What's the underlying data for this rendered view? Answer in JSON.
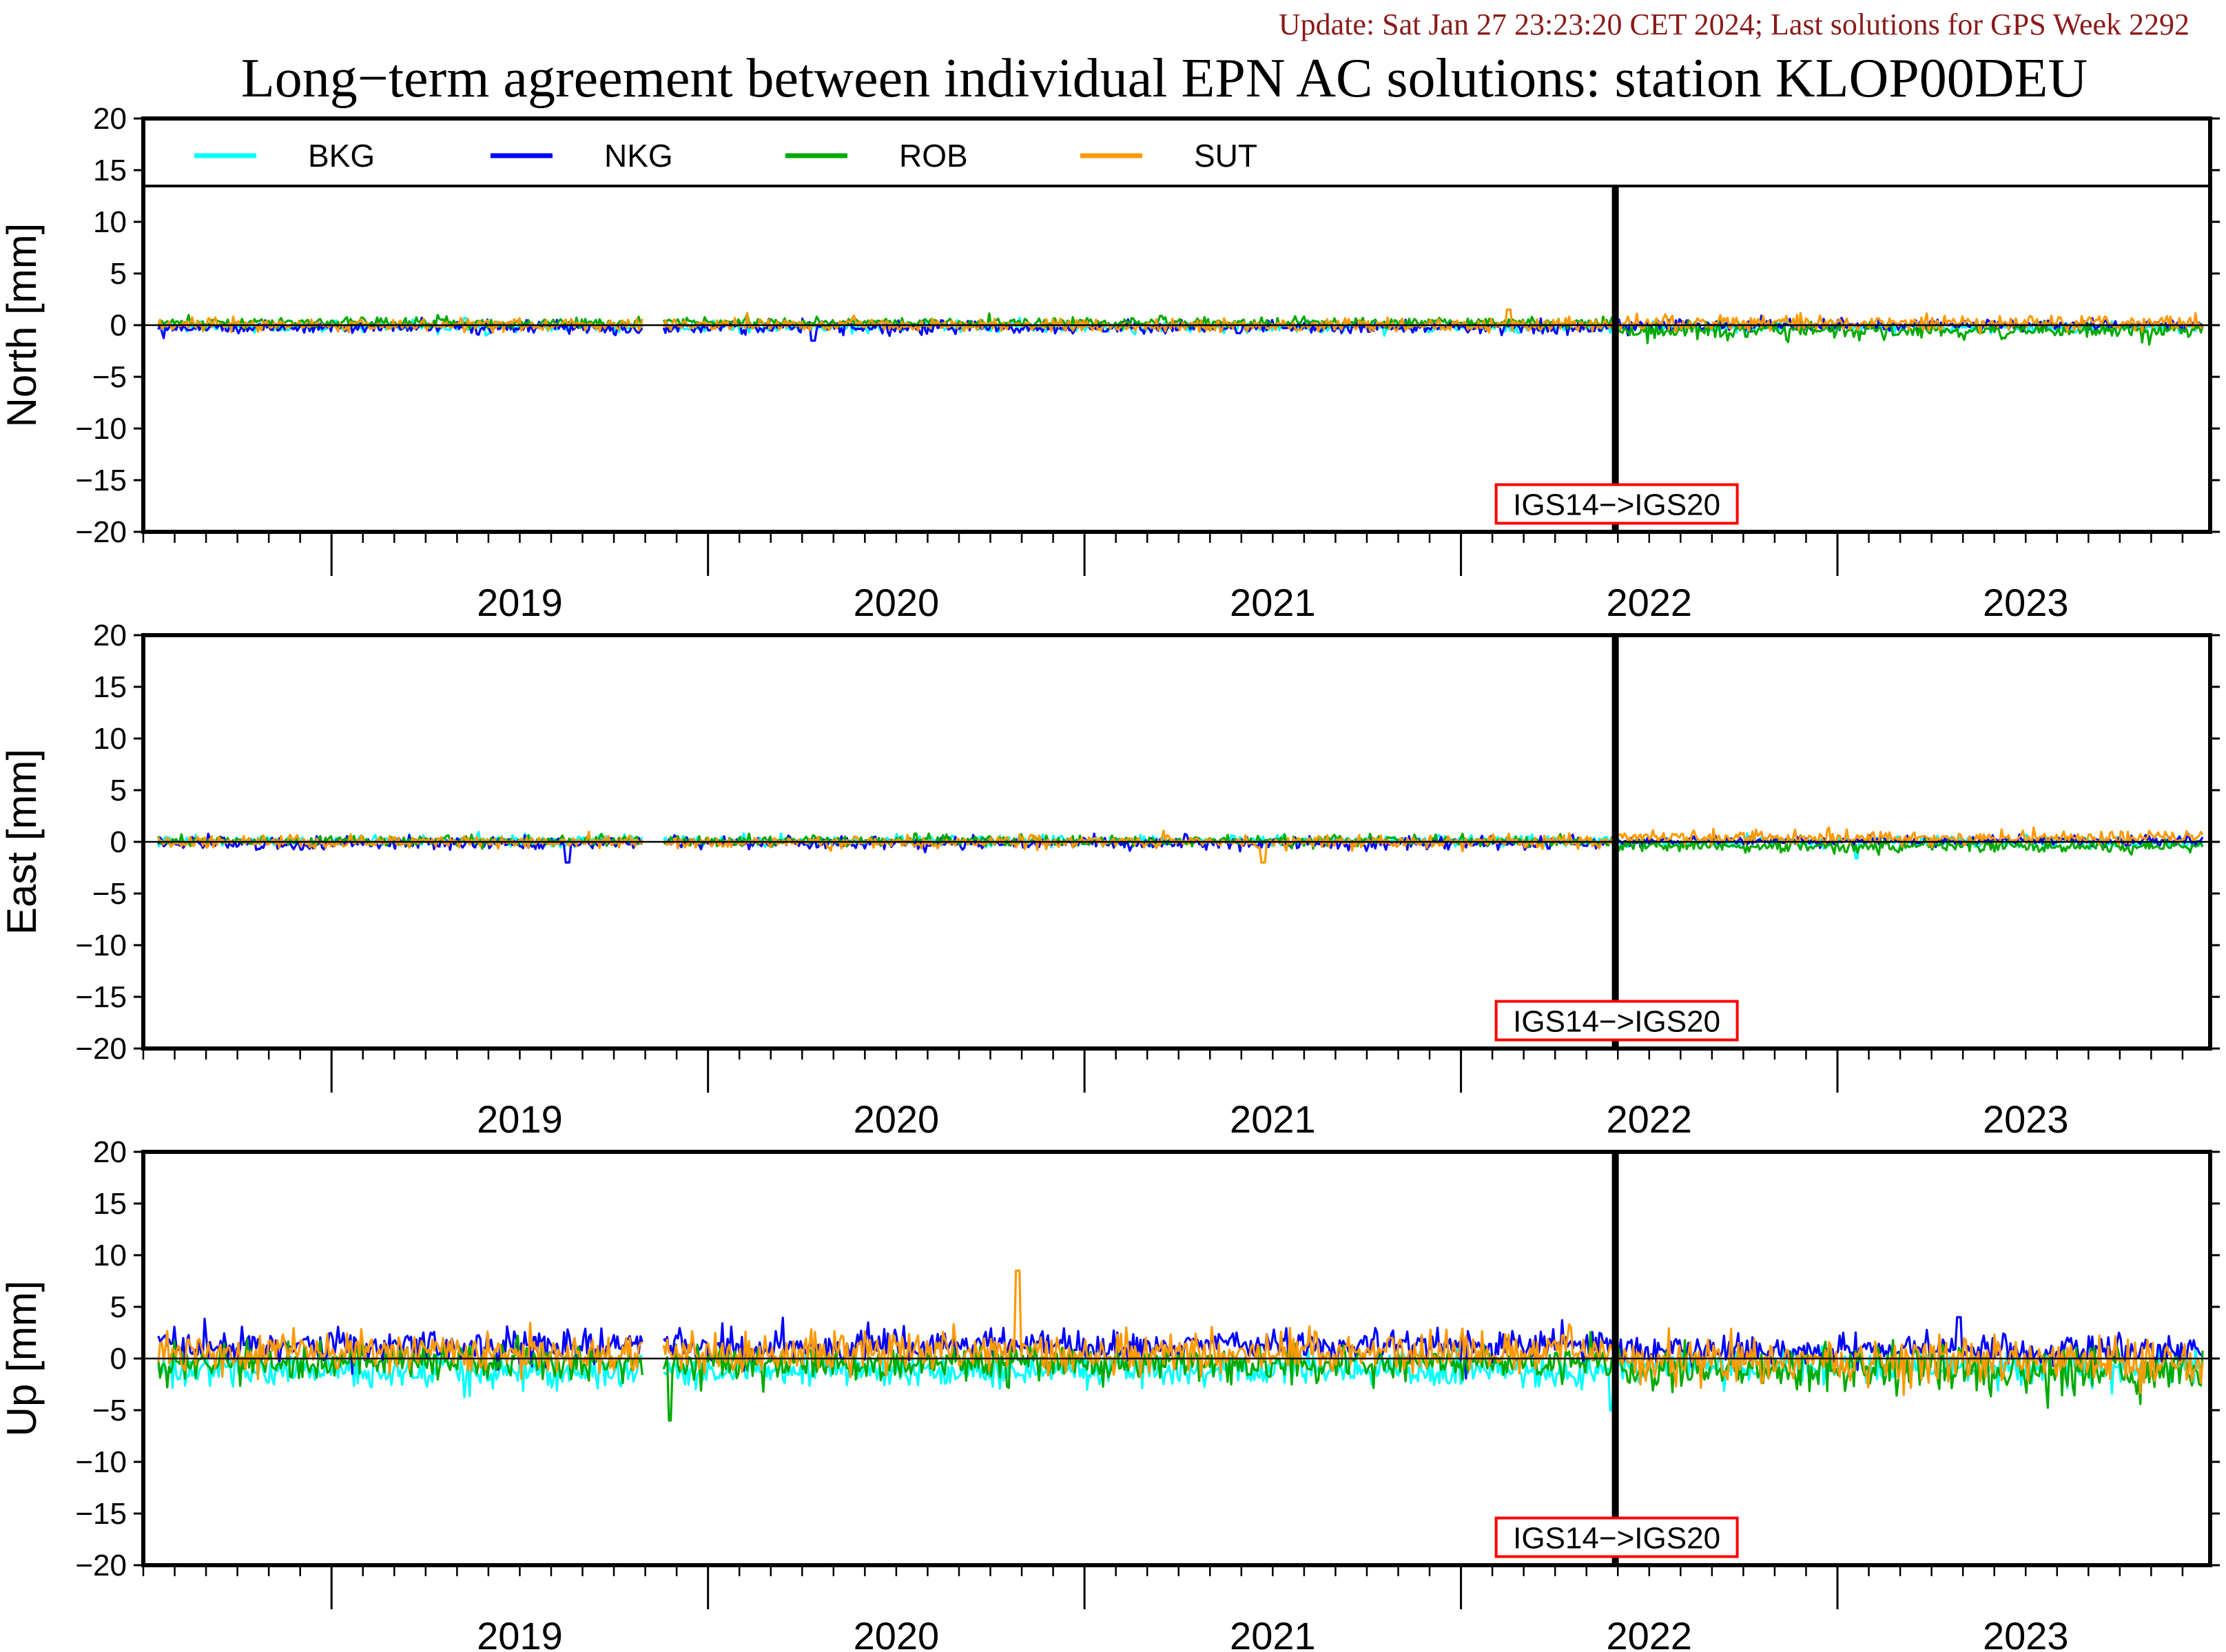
{
  "header": {
    "update_text": "Update: Sat Jan 27 23:23:20 CET 2024; Last solutions for GPS Week 2292",
    "title": "Long−term agreement between individual EPN AC solutions: station KLOP00DEU"
  },
  "chart_data": [
    {
      "type": "line",
      "ylabel": "North [mm]",
      "ylim": [
        -20,
        20
      ],
      "yticks": [
        20,
        15,
        10,
        5,
        0,
        -5,
        -10,
        -15,
        -20
      ],
      "ytick_labels": [
        "20",
        "15",
        "10",
        "5",
        "0",
        "−5",
        "−10",
        "−15",
        "−20"
      ],
      "xlim": [
        2018.5,
        2023.99
      ],
      "year_labels": [
        "2019",
        "2020",
        "2021",
        "2022",
        "2023"
      ],
      "legend": {
        "placement": "top",
        "entries": [
          "BKG",
          "NKG",
          "ROB",
          "SUT"
        ]
      },
      "event": {
        "x": 2022.41,
        "label": "IGS14−>IGS20"
      },
      "gap": [
        2019.83,
        2019.88
      ],
      "series": [
        {
          "name": "BKG",
          "color": "#00ffff",
          "mean": -0.2,
          "sd": 0.25,
          "peak": 0.7,
          "mean_post": -0.2,
          "sd_post": 0.25
        },
        {
          "name": "NKG",
          "color": "#0000ff",
          "mean": -0.2,
          "sd": 0.3,
          "peak": -1.5,
          "mean_post": 0.0,
          "sd_post": 0.3
        },
        {
          "name": "ROB",
          "color": "#00aa00",
          "mean": 0.25,
          "sd": 0.25,
          "peak": 0.9,
          "mean_post": -0.5,
          "sd_post": 0.4
        },
        {
          "name": "SUT",
          "color": "#ff9900",
          "mean": 0.0,
          "sd": 0.3,
          "peak": 1.5,
          "mean_post": 0.2,
          "sd_post": 0.35
        }
      ]
    },
    {
      "type": "line",
      "ylabel": "East [mm]",
      "ylim": [
        -20,
        20
      ],
      "yticks": [
        20,
        15,
        10,
        5,
        0,
        -5,
        -10,
        -15,
        -20
      ],
      "ytick_labels": [
        "20",
        "15",
        "10",
        "5",
        "0",
        "−5",
        "−10",
        "−15",
        "−20"
      ],
      "xlim": [
        2018.5,
        2023.99
      ],
      "year_labels": [
        "2019",
        "2020",
        "2021",
        "2022",
        "2023"
      ],
      "legend": null,
      "event": {
        "x": 2022.41,
        "label": "IGS14−>IGS20"
      },
      "gap": [
        2019.83,
        2019.88
      ],
      "series": [
        {
          "name": "BKG",
          "color": "#00ffff",
          "mean": 0.1,
          "sd": 0.25,
          "peak": -1.6,
          "mean_post": 0.0,
          "sd_post": 0.25
        },
        {
          "name": "NKG",
          "color": "#0000ff",
          "mean": -0.1,
          "sd": 0.3,
          "peak": -2.0,
          "mean_post": 0.1,
          "sd_post": 0.25
        },
        {
          "name": "ROB",
          "color": "#00aa00",
          "mean": 0.1,
          "sd": 0.25,
          "peak": 0.8,
          "mean_post": -0.4,
          "sd_post": 0.3
        },
        {
          "name": "SUT",
          "color": "#ff9900",
          "mean": 0.0,
          "sd": 0.3,
          "peak": -2.0,
          "mean_post": 0.4,
          "sd_post": 0.35
        }
      ]
    },
    {
      "type": "line",
      "ylabel": "Up [mm]",
      "ylim": [
        -20,
        20
      ],
      "yticks": [
        20,
        15,
        10,
        5,
        0,
        -5,
        -10,
        -15,
        -20
      ],
      "ytick_labels": [
        "20",
        "15",
        "10",
        "5",
        "0",
        "−5",
        "−10",
        "−15",
        "−20"
      ],
      "xlim": [
        2018.5,
        2023.99
      ],
      "year_labels": [
        "2019",
        "2020",
        "2021",
        "2022",
        "2023"
      ],
      "legend": null,
      "event": {
        "x": 2022.41,
        "label": "IGS14−>IGS20"
      },
      "gap": [
        2019.83,
        2019.88
      ],
      "series": [
        {
          "name": "BKG",
          "color": "#00ffff",
          "mean": -1.2,
          "sd": 0.8,
          "peak": -5.0,
          "mean_post": -0.8,
          "sd_post": 0.8
        },
        {
          "name": "NKG",
          "color": "#0000ff",
          "mean": 1.2,
          "sd": 0.8,
          "peak": 4.0,
          "mean_post": 0.8,
          "sd_post": 0.7
        },
        {
          "name": "ROB",
          "color": "#00aa00",
          "mean": -0.4,
          "sd": 0.8,
          "peak": -6.0,
          "mean_post": -1.0,
          "sd_post": 1.2
        },
        {
          "name": "SUT",
          "color": "#ff9900",
          "mean": 0.6,
          "sd": 1.0,
          "peak": 8.5,
          "mean_post": -0.2,
          "sd_post": 1.2
        }
      ]
    }
  ]
}
